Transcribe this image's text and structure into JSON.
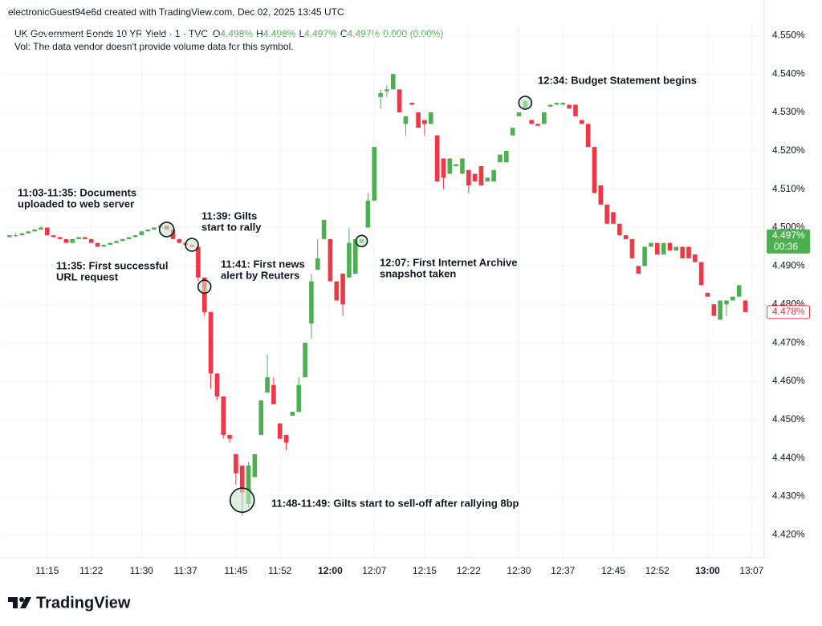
{
  "chart_data": {
    "type": "candlestick",
    "credit": "electronicGuest94e6d created with TradingView.com, Dec 02, 2025 13:45 UTC",
    "legend": {
      "symbol": "UK Government Bonds 10 YR Yield · 1 · TVC",
      "ohlc": [
        {
          "key": "O",
          "value": "4.498%"
        },
        {
          "key": "H",
          "value": "4.498%"
        },
        {
          "key": "L",
          "value": "4.497%"
        },
        {
          "key": "C",
          "value": "4.497%"
        }
      ],
      "change": "0.000 (0.00%)",
      "volume_note": "Vol: The data vendor doesn't provide volume data for this symbol."
    },
    "up_color": "#4caf50",
    "down_color": "#f23645",
    "xlim": [
      "11:08",
      "13:09"
    ],
    "xticks": [
      "11:15",
      "11:22",
      "11:30",
      "11:37",
      "11:45",
      "11:52",
      "12:00",
      "12:07",
      "12:15",
      "12:22",
      "12:30",
      "12:37",
      "12:45",
      "12:52",
      "13:00",
      "13:07"
    ],
    "ylim": [
      4.414,
      4.553
    ],
    "yticks": [
      {
        "value": 4.42,
        "label": "4.420%"
      },
      {
        "value": 4.43,
        "label": "4.430%"
      },
      {
        "value": 4.44,
        "label": "4.440%"
      },
      {
        "value": 4.45,
        "label": "4.450%"
      },
      {
        "value": 4.46,
        "label": "4.460%"
      },
      {
        "value": 4.47,
        "label": "4.470%"
      },
      {
        "value": 4.48,
        "label": "4.480%"
      },
      {
        "value": 4.49,
        "label": "4.490%"
      },
      {
        "value": 4.5,
        "label": "4.500%"
      },
      {
        "value": 4.51,
        "label": "4.510%"
      },
      {
        "value": 4.52,
        "label": "4.520%"
      },
      {
        "value": 4.53,
        "label": "4.530%"
      },
      {
        "value": 4.54,
        "label": "4.540%"
      },
      {
        "value": 4.55,
        "label": "4.550%"
      }
    ],
    "grid": true,
    "last_price": {
      "value": 4.497,
      "label": "4.497%",
      "countdown": "00:36"
    },
    "marker_price": {
      "value": 4.478,
      "label": "4.478%"
    },
    "candles": [
      {
        "x": "11:09",
        "open": 4.4975,
        "high": 4.498,
        "low": 4.4975,
        "close": 4.498
      },
      {
        "x": "11:10",
        "open": 4.498,
        "high": 4.4985,
        "low": 4.4975,
        "close": 4.498
      },
      {
        "x": "11:11",
        "open": 4.498,
        "high": 4.4985,
        "low": 4.498,
        "close": 4.4985
      },
      {
        "x": "11:12",
        "open": 4.4985,
        "high": 4.499,
        "low": 4.4985,
        "close": 4.499
      },
      {
        "x": "11:13",
        "open": 4.499,
        "high": 4.4995,
        "low": 4.499,
        "close": 4.4995
      },
      {
        "x": "11:14",
        "open": 4.4995,
        "high": 4.5005,
        "low": 4.4995,
        "close": 4.5
      },
      {
        "x": "11:15",
        "open": 4.5,
        "high": 4.5,
        "low": 4.498,
        "close": 4.498
      },
      {
        "x": "11:16",
        "open": 4.498,
        "high": 4.498,
        "low": 4.4975,
        "close": 4.4975
      },
      {
        "x": "11:17",
        "open": 4.4975,
        "high": 4.4975,
        "low": 4.497,
        "close": 4.497
      },
      {
        "x": "11:18",
        "open": 4.497,
        "high": 4.497,
        "low": 4.496,
        "close": 4.496
      },
      {
        "x": "11:19",
        "open": 4.496,
        "high": 4.497,
        "low": 4.496,
        "close": 4.497
      },
      {
        "x": "11:20",
        "open": 4.497,
        "high": 4.4975,
        "low": 4.497,
        "close": 4.4975
      },
      {
        "x": "11:21",
        "open": 4.4975,
        "high": 4.4975,
        "low": 4.497,
        "close": 4.497
      },
      {
        "x": "11:22",
        "open": 4.497,
        "high": 4.497,
        "low": 4.496,
        "close": 4.496
      },
      {
        "x": "11:23",
        "open": 4.496,
        "high": 4.496,
        "low": 4.495,
        "close": 4.495
      },
      {
        "x": "11:24",
        "open": 4.495,
        "high": 4.4955,
        "low": 4.495,
        "close": 4.4955
      },
      {
        "x": "11:25",
        "open": 4.4955,
        "high": 4.496,
        "low": 4.4955,
        "close": 4.496
      },
      {
        "x": "11:26",
        "open": 4.496,
        "high": 4.4965,
        "low": 4.496,
        "close": 4.4965
      },
      {
        "x": "11:27",
        "open": 4.4965,
        "high": 4.497,
        "low": 4.4965,
        "close": 4.497
      },
      {
        "x": "11:28",
        "open": 4.497,
        "high": 4.4975,
        "low": 4.497,
        "close": 4.4975
      },
      {
        "x": "11:29",
        "open": 4.4975,
        "high": 4.498,
        "low": 4.4975,
        "close": 4.498
      },
      {
        "x": "11:30",
        "open": 4.498,
        "high": 4.499,
        "low": 4.498,
        "close": 4.499
      },
      {
        "x": "11:31",
        "open": 4.499,
        "high": 4.4995,
        "low": 4.499,
        "close": 4.4995
      },
      {
        "x": "11:32",
        "open": 4.4995,
        "high": 4.5,
        "low": 4.4995,
        "close": 4.5
      },
      {
        "x": "11:33",
        "open": 4.5,
        "high": 4.501,
        "low": 4.5,
        "close": 4.5005
      },
      {
        "x": "11:34",
        "open": 4.5005,
        "high": 4.5005,
        "low": 4.4995,
        "close": 4.4995
      },
      {
        "x": "11:35",
        "open": 4.4995,
        "high": 4.4995,
        "low": 4.497,
        "close": 4.497
      },
      {
        "x": "11:36",
        "open": 4.497,
        "high": 4.497,
        "low": 4.496,
        "close": 4.496
      },
      {
        "x": "11:37",
        "open": 4.496,
        "high": 4.496,
        "low": 4.4955,
        "close": 4.4955
      },
      {
        "x": "11:38",
        "open": 4.4955,
        "high": 4.4955,
        "low": 4.495,
        "close": 4.495
      },
      {
        "x": "11:39",
        "open": 4.495,
        "high": 4.495,
        "low": 4.486,
        "close": 4.487
      },
      {
        "x": "11:40",
        "open": 4.487,
        "high": 4.487,
        "low": 4.477,
        "close": 4.478
      },
      {
        "x": "11:41",
        "open": 4.478,
        "high": 4.478,
        "low": 4.458,
        "close": 4.462
      },
      {
        "x": "11:42",
        "open": 4.462,
        "high": 4.462,
        "low": 4.455,
        "close": 4.456
      },
      {
        "x": "11:43",
        "open": 4.456,
        "high": 4.456,
        "low": 4.445,
        "close": 4.446
      },
      {
        "x": "11:44",
        "open": 4.446,
        "high": 4.446,
        "low": 4.444,
        "close": 4.445
      },
      {
        "x": "11:45",
        "open": 4.441,
        "high": 4.441,
        "low": 4.433,
        "close": 4.436
      },
      {
        "x": "11:46",
        "open": 4.438,
        "high": 4.438,
        "low": 4.425,
        "close": 4.431
      },
      {
        "x": "11:47",
        "open": 4.428,
        "high": 4.439,
        "low": 4.427,
        "close": 4.438
      },
      {
        "x": "11:48",
        "open": 4.435,
        "high": 4.441,
        "low": 4.435,
        "close": 4.441
      },
      {
        "x": "11:49",
        "open": 4.446,
        "high": 4.455,
        "low": 4.446,
        "close": 4.455
      },
      {
        "x": "11:50",
        "open": 4.457,
        "high": 4.467,
        "low": 4.457,
        "close": 4.461
      },
      {
        "x": "11:51",
        "open": 4.459,
        "high": 4.461,
        "low": 4.454,
        "close": 4.454
      },
      {
        "x": "11:52",
        "open": 4.449,
        "high": 4.449,
        "low": 4.445,
        "close": 4.445
      },
      {
        "x": "11:53",
        "open": 4.446,
        "high": 4.446,
        "low": 4.442,
        "close": 4.444
      },
      {
        "x": "11:54",
        "open": 4.451,
        "high": 4.452,
        "low": 4.451,
        "close": 4.452
      },
      {
        "x": "11:55",
        "open": 4.452,
        "high": 4.461,
        "low": 4.452,
        "close": 4.459
      },
      {
        "x": "11:56",
        "open": 4.461,
        "high": 4.47,
        "low": 4.461,
        "close": 4.47
      },
      {
        "x": "11:57",
        "open": 4.475,
        "high": 4.488,
        "low": 4.471,
        "close": 4.486
      },
      {
        "x": "11:58",
        "open": 4.489,
        "high": 4.497,
        "low": 4.489,
        "close": 4.492
      },
      {
        "x": "11:59",
        "open": 4.497,
        "high": 4.502,
        "low": 4.497,
        "close": 4.502
      },
      {
        "x": "12:00",
        "open": 4.497,
        "high": 4.497,
        "low": 4.486,
        "close": 4.486
      },
      {
        "x": "12:01",
        "open": 4.486,
        "high": 4.486,
        "low": 4.481,
        "close": 4.481
      },
      {
        "x": "12:02",
        "open": 4.488,
        "high": 4.488,
        "low": 4.477,
        "close": 4.48
      },
      {
        "x": "12:03",
        "open": 4.487,
        "high": 4.5,
        "low": 4.487,
        "close": 4.496
      },
      {
        "x": "12:04",
        "open": 4.488,
        "high": 4.497,
        "low": 4.488,
        "close": 4.497
      },
      {
        "x": "12:05",
        "open": 4.496,
        "high": 4.497,
        "low": 4.496,
        "close": 4.497
      },
      {
        "x": "12:06",
        "open": 4.5,
        "high": 4.509,
        "low": 4.5,
        "close": 4.507
      },
      {
        "x": "12:07",
        "open": 4.507,
        "high": 4.521,
        "low": 4.507,
        "close": 4.521
      },
      {
        "x": "12:08",
        "open": 4.534,
        "high": 4.536,
        "low": 4.531,
        "close": 4.535
      },
      {
        "x": "12:09",
        "open": 4.5355,
        "high": 4.537,
        "low": 4.534,
        "close": 4.536
      },
      {
        "x": "12:10",
        "open": 4.536,
        "high": 4.54,
        "low": 4.536,
        "close": 4.54
      },
      {
        "x": "12:11",
        "open": 4.536,
        "high": 4.536,
        "low": 4.53,
        "close": 4.53
      },
      {
        "x": "12:12",
        "open": 4.527,
        "high": 4.529,
        "low": 4.524,
        "close": 4.529
      },
      {
        "x": "12:13",
        "open": 4.5325,
        "high": 4.5325,
        "low": 4.532,
        "close": 4.532
      },
      {
        "x": "12:14",
        "open": 4.53,
        "high": 4.53,
        "low": 4.526,
        "close": 4.526
      },
      {
        "x": "12:15",
        "open": 4.528,
        "high": 4.528,
        "low": 4.524,
        "close": 4.527
      },
      {
        "x": "12:16",
        "open": 4.527,
        "high": 4.53,
        "low": 4.527,
        "close": 4.53
      },
      {
        "x": "12:17",
        "open": 4.524,
        "high": 4.524,
        "low": 4.512,
        "close": 4.512
      },
      {
        "x": "12:18",
        "open": 4.518,
        "high": 4.518,
        "low": 4.51,
        "close": 4.513
      },
      {
        "x": "12:19",
        "open": 4.514,
        "high": 4.518,
        "low": 4.514,
        "close": 4.518
      },
      {
        "x": "12:20",
        "open": 4.516,
        "high": 4.5165,
        "low": 4.516,
        "close": 4.5165
      },
      {
        "x": "12:21",
        "open": 4.514,
        "high": 4.518,
        "low": 4.514,
        "close": 4.518
      },
      {
        "x": "12:22",
        "open": 4.515,
        "high": 4.515,
        "low": 4.509,
        "close": 4.511
      },
      {
        "x": "12:23",
        "open": 4.514,
        "high": 4.514,
        "low": 4.512,
        "close": 4.512
      },
      {
        "x": "12:24",
        "open": 4.516,
        "high": 4.516,
        "low": 4.511,
        "close": 4.511
      },
      {
        "x": "12:25",
        "open": 4.512,
        "high": 4.513,
        "low": 4.512,
        "close": 4.513
      },
      {
        "x": "12:26",
        "open": 4.512,
        "high": 4.515,
        "low": 4.512,
        "close": 4.515
      },
      {
        "x": "12:27",
        "open": 4.517,
        "high": 4.519,
        "low": 4.517,
        "close": 4.519
      },
      {
        "x": "12:28",
        "open": 4.517,
        "high": 4.52,
        "low": 4.517,
        "close": 4.52
      },
      {
        "x": "12:29",
        "open": 4.524,
        "high": 4.526,
        "low": 4.524,
        "close": 4.526
      },
      {
        "x": "12:30",
        "open": 4.529,
        "high": 4.53,
        "low": 4.529,
        "close": 4.53
      },
      {
        "x": "12:31",
        "open": 4.531,
        "high": 4.533,
        "low": 4.531,
        "close": 4.533
      },
      {
        "x": "12:32",
        "open": 4.528,
        "high": 4.528,
        "low": 4.527,
        "close": 4.527
      },
      {
        "x": "12:33",
        "open": 4.527,
        "high": 4.527,
        "low": 4.5265,
        "close": 4.5265
      },
      {
        "x": "12:34",
        "open": 4.527,
        "high": 4.53,
        "low": 4.527,
        "close": 4.53
      },
      {
        "x": "12:35",
        "open": 4.5315,
        "high": 4.532,
        "low": 4.5315,
        "close": 4.532
      },
      {
        "x": "12:36",
        "open": 4.532,
        "high": 4.5325,
        "low": 4.532,
        "close": 4.5325
      },
      {
        "x": "12:37",
        "open": 4.532,
        "high": 4.5325,
        "low": 4.532,
        "close": 4.5325
      },
      {
        "x": "12:38",
        "open": 4.532,
        "high": 4.532,
        "low": 4.531,
        "close": 4.531
      },
      {
        "x": "12:39",
        "open": 4.532,
        "high": 4.532,
        "low": 4.529,
        "close": 4.529
      },
      {
        "x": "12:40",
        "open": 4.528,
        "high": 4.528,
        "low": 4.527,
        "close": 4.527
      },
      {
        "x": "12:41",
        "open": 4.527,
        "high": 4.527,
        "low": 4.521,
        "close": 4.521
      },
      {
        "x": "12:42",
        "open": 4.521,
        "high": 4.521,
        "low": 4.509,
        "close": 4.509
      },
      {
        "x": "12:43",
        "open": 4.511,
        "high": 4.511,
        "low": 4.506,
        "close": 4.506
      },
      {
        "x": "12:44",
        "open": 4.506,
        "high": 4.506,
        "low": 4.501,
        "close": 4.501
      },
      {
        "x": "12:45",
        "open": 4.504,
        "high": 4.504,
        "low": 4.501,
        "close": 4.501
      },
      {
        "x": "12:46",
        "open": 4.501,
        "high": 4.501,
        "low": 4.498,
        "close": 4.498
      },
      {
        "x": "12:47",
        "open": 4.498,
        "high": 4.498,
        "low": 4.497,
        "close": 4.497
      },
      {
        "x": "12:48",
        "open": 4.497,
        "high": 4.497,
        "low": 4.492,
        "close": 4.492
      },
      {
        "x": "12:49",
        "open": 4.49,
        "high": 4.49,
        "low": 4.488,
        "close": 4.488
      },
      {
        "x": "12:50",
        "open": 4.49,
        "high": 4.495,
        "low": 4.49,
        "close": 4.495
      },
      {
        "x": "12:51",
        "open": 4.495,
        "high": 4.496,
        "low": 4.495,
        "close": 4.496
      },
      {
        "x": "12:52",
        "open": 4.496,
        "high": 4.496,
        "low": 4.493,
        "close": 4.493
      },
      {
        "x": "12:53",
        "open": 4.493,
        "high": 4.496,
        "low": 4.493,
        "close": 4.496
      },
      {
        "x": "12:54",
        "open": 4.496,
        "high": 4.496,
        "low": 4.494,
        "close": 4.494
      },
      {
        "x": "12:55",
        "open": 4.494,
        "high": 4.495,
        "low": 4.494,
        "close": 4.495
      },
      {
        "x": "12:56",
        "open": 4.495,
        "high": 4.495,
        "low": 4.492,
        "close": 4.492
      },
      {
        "x": "12:57",
        "open": 4.495,
        "high": 4.495,
        "low": 4.492,
        "close": 4.492
      },
      {
        "x": "12:58",
        "open": 4.493,
        "high": 4.493,
        "low": 4.491,
        "close": 4.491
      },
      {
        "x": "12:59",
        "open": 4.491,
        "high": 4.491,
        "low": 4.485,
        "close": 4.485
      },
      {
        "x": "13:00",
        "open": 4.483,
        "high": 4.483,
        "low": 4.482,
        "close": 4.482
      },
      {
        "x": "13:01",
        "open": 4.48,
        "high": 4.48,
        "low": 4.477,
        "close": 4.477
      },
      {
        "x": "13:02",
        "open": 4.476,
        "high": 4.481,
        "low": 4.476,
        "close": 4.481
      },
      {
        "x": "13:03",
        "open": 4.48,
        "high": 4.481,
        "low": 4.477,
        "close": 4.481
      },
      {
        "x": "13:04",
        "open": 4.481,
        "high": 4.482,
        "low": 4.481,
        "close": 4.482
      },
      {
        "x": "13:05",
        "open": 4.482,
        "high": 4.485,
        "low": 4.482,
        "close": 4.485
      },
      {
        "x": "13:06",
        "open": 4.481,
        "high": 4.481,
        "low": 4.478,
        "close": 4.478
      }
    ],
    "annotations": [
      {
        "lines": [
          "11:03-11:35: Documents",
          "uploaded to web server"
        ]
      },
      {
        "lines": [
          "11:35: First successful",
          "URL request"
        ],
        "at": {
          "x": "11:34",
          "y": 4.4995
        }
      },
      {
        "lines": [
          "11:39: Gilts",
          "start to rally"
        ],
        "at": {
          "x": "11:38",
          "y": 4.4955
        }
      },
      {
        "lines": [
          "11:41: First news",
          "alert by Reuters"
        ],
        "at": {
          "x": "11:40",
          "y": 4.4846
        }
      },
      {
        "lines": [
          "11:48-11:49: Gilts start to sell-off after rallying 8bp"
        ],
        "at": {
          "x": "11:46",
          "y": 4.429
        }
      },
      {
        "lines": [
          "12:07: First Internet Archive",
          "snapshot taken"
        ],
        "at": {
          "x": "12:05",
          "y": 4.4965
        }
      },
      {
        "lines": [
          "12:34: Budget Statement begins"
        ],
        "at": {
          "x": "12:31",
          "y": 4.5325
        }
      }
    ],
    "logo": "TradingView"
  }
}
